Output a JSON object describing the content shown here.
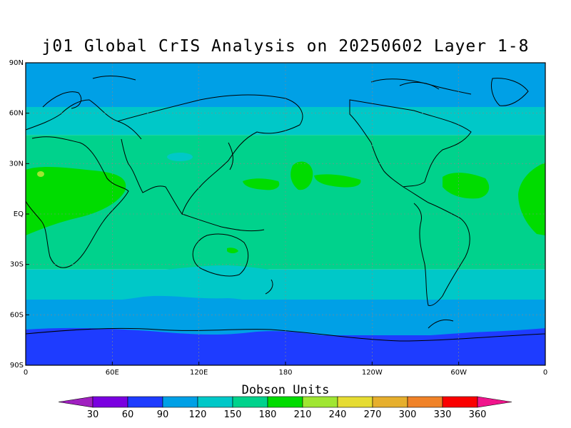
{
  "title": "j01 Global CrIS Analysis on 20250602 Layer 1-8",
  "colorbar": {
    "title": "Dobson Units",
    "ticks": [
      "30",
      "60",
      "90",
      "120",
      "150",
      "180",
      "210",
      "240",
      "270",
      "300",
      "330",
      "360"
    ],
    "colors": [
      "#a020c0",
      "#7a00e0",
      "#1e3cff",
      "#00a0e6",
      "#00c8c8",
      "#00d28c",
      "#00dc00",
      "#a0e632",
      "#e6dc32",
      "#e6af2d",
      "#f08228",
      "#fa0000",
      "#f0148c"
    ]
  },
  "map": {
    "lat_labels": [
      "90N",
      "60N",
      "30N",
      "EQ",
      "30S",
      "60S",
      "90S"
    ],
    "lon_labels": [
      "0",
      "60E",
      "120E",
      "180",
      "120W",
      "60W",
      "0"
    ],
    "bands": [
      {
        "from_lat": 90,
        "to_lat": 62,
        "value_color": "#00a0e6"
      },
      {
        "from_lat": 62,
        "to_lat": 47,
        "value_color": "#00c8c8"
      },
      {
        "from_lat": 47,
        "to_lat": -33,
        "value_color": "#00d28c"
      },
      {
        "from_lat": -33,
        "to_lat": -48,
        "value_color": "#00c8c8"
      },
      {
        "from_lat": -48,
        "to_lat": -67,
        "value_color": "#00a0e6"
      },
      {
        "from_lat": -67,
        "to_lat": -90,
        "value_color": "#1e3cff"
      }
    ]
  }
}
